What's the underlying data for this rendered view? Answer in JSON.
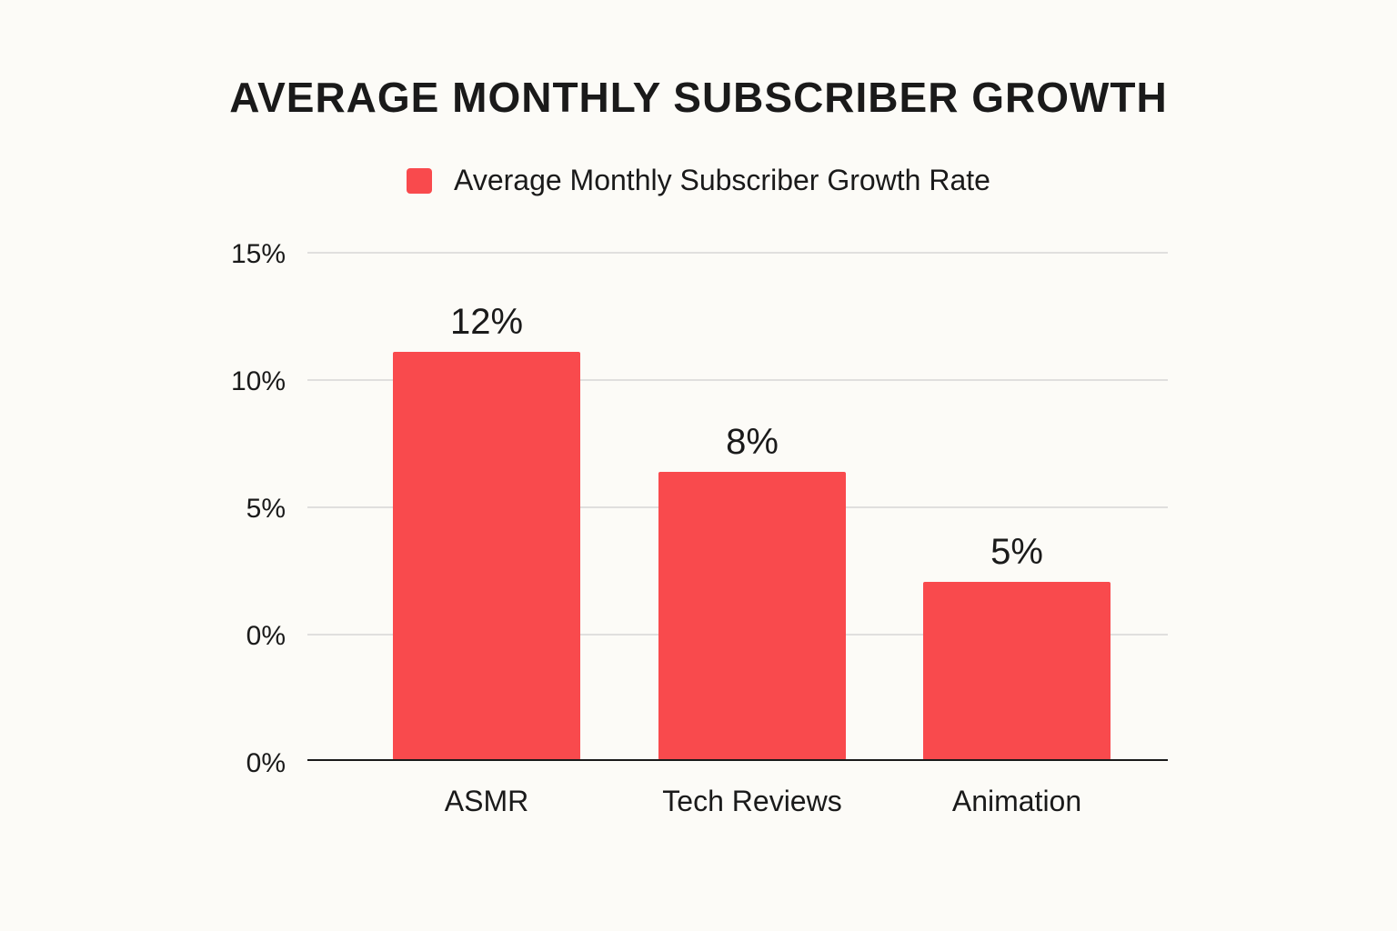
{
  "chart_data": {
    "type": "bar",
    "title": "AVERAGE MONTHLY SUBSCRIBER GROWTH",
    "legend": {
      "placement": "top-center",
      "entries": [
        {
          "label": "Average Monthly Subscriber Growth Rate",
          "color": "#f94a4d"
        }
      ]
    },
    "categories": [
      "ASMR",
      "Tech Reviews",
      "Animation"
    ],
    "series": [
      {
        "name": "Average Monthly Subscriber Growth Rate",
        "color": "#f94a4d",
        "values": [
          12,
          8,
          5
        ],
        "data_labels": [
          "12%",
          "8%",
          "5%"
        ]
      }
    ],
    "y_ticks": [
      "15%",
      "10%",
      "5%",
      "0%",
      "0%"
    ],
    "xlabel": "",
    "ylabel": "",
    "grid": true
  }
}
